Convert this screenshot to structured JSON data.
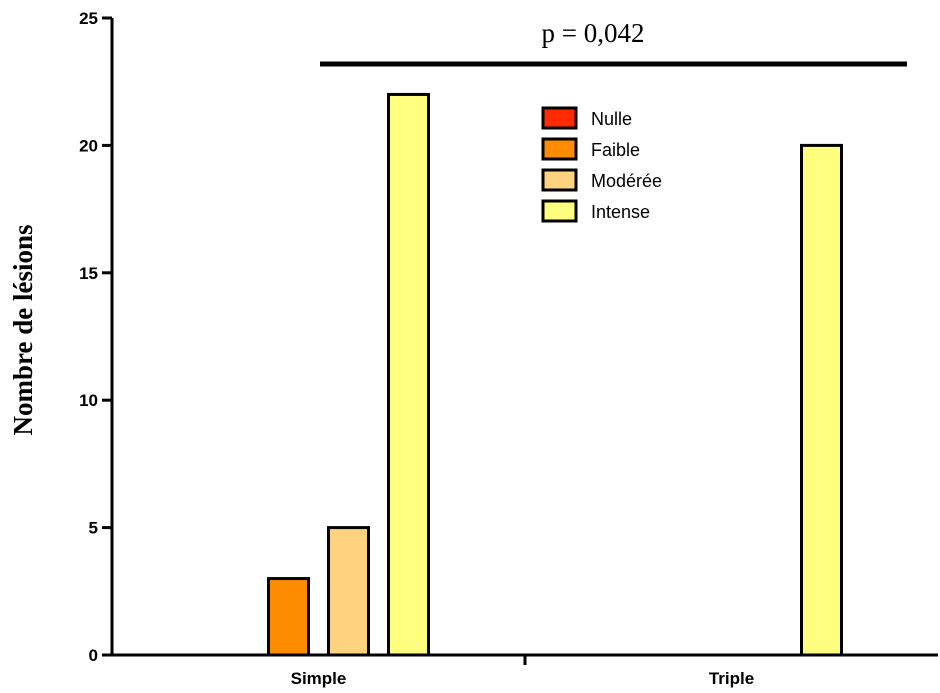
{
  "chart_data": {
    "type": "bar",
    "title": "",
    "xlabel": "",
    "ylabel": "Nombre de lésions",
    "ylim": [
      0,
      25
    ],
    "yticks": [
      0,
      5,
      10,
      15,
      20,
      25
    ],
    "categories": [
      "Simple",
      "Triple"
    ],
    "series": [
      {
        "name": "Nulle",
        "color": "#FF2A00",
        "values": [
          0,
          0
        ]
      },
      {
        "name": "Faible",
        "color": "#FF8C00",
        "values": [
          3,
          0
        ]
      },
      {
        "name": "Modérée",
        "color": "#FFD27F",
        "values": [
          5,
          0
        ]
      },
      {
        "name": "Intense",
        "color": "#FFFF7F",
        "values": [
          22,
          20
        ]
      }
    ],
    "legend": {
      "placement": "top-center"
    },
    "grid": false,
    "annotation": {
      "text": "p = 0,042",
      "type": "significance-bar"
    }
  }
}
